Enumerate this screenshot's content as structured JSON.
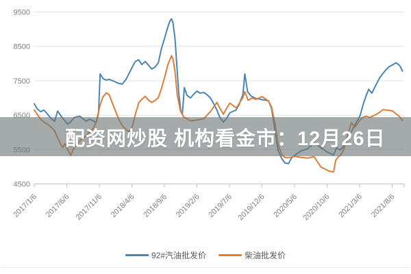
{
  "banner": {
    "text": "配资网炒股 机构看金市：12月26日"
  },
  "chart_data": {
    "type": "line",
    "title": "",
    "xlabel": "",
    "ylabel": "",
    "ylim": [
      4500,
      9500
    ],
    "grid": true,
    "legend_position": "bottom",
    "y_ticks": [
      9500,
      8500,
      7500,
      6500,
      5500,
      4500
    ],
    "x_tick_labels": [
      "2017/1/6",
      "2017/6/6",
      "2017/11/6",
      "2018/4/6",
      "2018/9/6",
      "2019/2/6",
      "2019/7/6",
      "2019/12/6",
      "2020/5/6",
      "2020/10/6",
      "2021/3/6",
      "2021/8/6"
    ],
    "axis_color": "#bfbfbf",
    "gridline_color": "#e2e2e2",
    "tick_label_color": "#7f7f7f",
    "series": [
      {
        "name": "92#汽油批发价",
        "color": "#4a84b4",
        "points": [
          [
            "2017/1/6",
            6830
          ],
          [
            "2017/1/20",
            6680
          ],
          [
            "2017/2/6",
            6600
          ],
          [
            "2017/2/20",
            6650
          ],
          [
            "2017/3/6",
            6540
          ],
          [
            "2017/3/24",
            6400
          ],
          [
            "2017/4/10",
            6320
          ],
          [
            "2017/4/24",
            6620
          ],
          [
            "2017/5/12",
            6450
          ],
          [
            "2017/5/26",
            6350
          ],
          [
            "2017/6/10",
            6240
          ],
          [
            "2017/6/24",
            6300
          ],
          [
            "2017/7/10",
            6430
          ],
          [
            "2017/8/6",
            6470
          ],
          [
            "2017/9/6",
            6320
          ],
          [
            "2017/9/20",
            6380
          ],
          [
            "2017/10/6",
            6340
          ],
          [
            "2017/10/22",
            6280
          ],
          [
            "2017/11/2",
            6550
          ],
          [
            "2017/11/10",
            7700
          ],
          [
            "2017/11/24",
            7560
          ],
          [
            "2017/12/8",
            7520
          ],
          [
            "2017/12/22",
            7540
          ],
          [
            "2018/1/8",
            7500
          ],
          [
            "2018/1/22",
            7460
          ],
          [
            "2018/2/8",
            7420
          ],
          [
            "2018/2/22",
            7400
          ],
          [
            "2018/3/10",
            7550
          ],
          [
            "2018/3/24",
            7720
          ],
          [
            "2018/4/8",
            7900
          ],
          [
            "2018/4/22",
            8060
          ],
          [
            "2018/5/8",
            8110
          ],
          [
            "2018/5/22",
            7970
          ],
          [
            "2018/6/8",
            8060
          ],
          [
            "2018/6/22",
            7960
          ],
          [
            "2018/7/8",
            7840
          ],
          [
            "2018/7/22",
            7890
          ],
          [
            "2018/8/8",
            8020
          ],
          [
            "2018/8/22",
            8420
          ],
          [
            "2018/9/8",
            8760
          ],
          [
            "2018/9/22",
            9060
          ],
          [
            "2018/10/2",
            9250
          ],
          [
            "2018/10/9",
            9300
          ],
          [
            "2018/10/16",
            9180
          ],
          [
            "2018/10/25",
            8750
          ],
          [
            "2018/11/2",
            8050
          ],
          [
            "2018/11/12",
            7150
          ],
          [
            "2018/11/22",
            6620
          ],
          [
            "2018/11/29",
            6520
          ],
          [
            "2018/12/8",
            7300
          ],
          [
            "2018/12/20",
            7080
          ],
          [
            "2019/1/6",
            7000
          ],
          [
            "2019/1/20",
            7100
          ],
          [
            "2019/2/6",
            7200
          ],
          [
            "2019/2/20",
            7140
          ],
          [
            "2019/3/8",
            7160
          ],
          [
            "2019/3/22",
            7100
          ],
          [
            "2019/4/8",
            7000
          ],
          [
            "2019/4/22",
            6850
          ],
          [
            "2019/5/8",
            6650
          ],
          [
            "2019/5/22",
            6430
          ],
          [
            "2019/6/8",
            6300
          ],
          [
            "2019/6/22",
            6400
          ],
          [
            "2019/7/8",
            6570
          ],
          [
            "2019/8/6",
            6650
          ],
          [
            "2019/8/20",
            6800
          ],
          [
            "2019/9/8",
            7100
          ],
          [
            "2019/9/17",
            7700
          ],
          [
            "2019/9/30",
            7180
          ],
          [
            "2019/10/15",
            7060
          ],
          [
            "2019/11/6",
            6990
          ],
          [
            "2019/12/6",
            6950
          ],
          [
            "2020/1/6",
            6920
          ],
          [
            "2020/1/20",
            6700
          ],
          [
            "2020/2/6",
            6050
          ],
          [
            "2020/2/20",
            5480
          ],
          [
            "2020/3/8",
            5230
          ],
          [
            "2020/3/22",
            5110
          ],
          [
            "2020/4/8",
            5090
          ],
          [
            "2020/4/22",
            5250
          ],
          [
            "2020/5/8",
            5340
          ],
          [
            "2020/6/6",
            5460
          ],
          [
            "2020/7/6",
            5520
          ],
          [
            "2020/8/6",
            5690
          ],
          [
            "2020/8/20",
            5640
          ],
          [
            "2020/9/6",
            5560
          ],
          [
            "2020/10/6",
            5430
          ],
          [
            "2020/11/6",
            5340
          ],
          [
            "2020/11/20",
            5550
          ],
          [
            "2020/12/6",
            5490
          ],
          [
            "2020/12/20",
            5570
          ],
          [
            "2021/1/8",
            5760
          ],
          [
            "2021/2/6",
            6120
          ],
          [
            "2021/3/8",
            6480
          ],
          [
            "2021/3/22",
            6800
          ],
          [
            "2021/4/8",
            7100
          ],
          [
            "2021/4/18",
            7250
          ],
          [
            "2021/5/2",
            7140
          ],
          [
            "2021/5/20",
            7360
          ],
          [
            "2021/6/8",
            7580
          ],
          [
            "2021/6/22",
            7700
          ],
          [
            "2021/7/8",
            7820
          ],
          [
            "2021/7/22",
            7910
          ],
          [
            "2021/8/8",
            7960
          ],
          [
            "2021/8/22",
            8020
          ],
          [
            "2021/9/2",
            7990
          ],
          [
            "2021/9/12",
            7930
          ],
          [
            "2021/9/24",
            7780
          ]
        ]
      },
      {
        "name": "柴油批发价",
        "color": "#e07c35",
        "points": [
          [
            "2017/1/6",
            6650
          ],
          [
            "2017/1/20",
            6520
          ],
          [
            "2017/2/6",
            6380
          ],
          [
            "2017/2/20",
            6300
          ],
          [
            "2017/3/10",
            6230
          ],
          [
            "2017/3/24",
            6150
          ],
          [
            "2017/4/8",
            6060
          ],
          [
            "2017/4/22",
            5870
          ],
          [
            "2017/5/8",
            5650
          ],
          [
            "2017/5/18",
            5560
          ],
          [
            "2017/5/28",
            5670
          ],
          [
            "2017/6/10",
            5500
          ],
          [
            "2017/6/24",
            5330
          ],
          [
            "2017/7/10",
            5560
          ],
          [
            "2017/8/6",
            5750
          ],
          [
            "2017/9/6",
            5910
          ],
          [
            "2017/10/6",
            6090
          ],
          [
            "2017/10/22",
            6300
          ],
          [
            "2017/11/8",
            6750
          ],
          [
            "2017/11/22",
            7020
          ],
          [
            "2017/12/8",
            7150
          ],
          [
            "2017/12/22",
            7090
          ],
          [
            "2018/1/8",
            6820
          ],
          [
            "2018/1/22",
            6600
          ],
          [
            "2018/2/8",
            6350
          ],
          [
            "2018/2/22",
            6200
          ],
          [
            "2018/3/10",
            6080
          ],
          [
            "2018/3/22",
            6010
          ],
          [
            "2018/4/8",
            6160
          ],
          [
            "2018/4/22",
            6520
          ],
          [
            "2018/5/8",
            6860
          ],
          [
            "2018/5/22",
            6960
          ],
          [
            "2018/6/8",
            7050
          ],
          [
            "2018/6/22",
            6940
          ],
          [
            "2018/7/8",
            6870
          ],
          [
            "2018/7/22",
            6920
          ],
          [
            "2018/8/8",
            7010
          ],
          [
            "2018/8/22",
            7260
          ],
          [
            "2018/9/8",
            7620
          ],
          [
            "2018/9/22",
            7960
          ],
          [
            "2018/10/9",
            8230
          ],
          [
            "2018/10/16",
            8130
          ],
          [
            "2018/10/25",
            7780
          ],
          [
            "2018/11/5",
            7100
          ],
          [
            "2018/11/20",
            6620
          ],
          [
            "2018/12/6",
            6440
          ],
          [
            "2018/12/20",
            6400
          ],
          [
            "2019/1/6",
            6330
          ],
          [
            "2019/2/6",
            6360
          ],
          [
            "2019/3/8",
            6400
          ],
          [
            "2019/4/8",
            6600
          ],
          [
            "2019/5/8",
            6870
          ],
          [
            "2019/5/22",
            6700
          ],
          [
            "2019/6/8",
            6530
          ],
          [
            "2019/6/22",
            6690
          ],
          [
            "2019/7/8",
            6850
          ],
          [
            "2019/7/22",
            6780
          ],
          [
            "2019/8/8",
            6710
          ],
          [
            "2019/8/22",
            6850
          ],
          [
            "2019/9/8",
            7010
          ],
          [
            "2019/9/17",
            7180
          ],
          [
            "2019/10/2",
            6930
          ],
          [
            "2019/10/20",
            7000
          ],
          [
            "2019/11/8",
            6960
          ],
          [
            "2019/12/6",
            7040
          ],
          [
            "2020/1/6",
            6910
          ],
          [
            "2020/1/20",
            6740
          ],
          [
            "2020/2/6",
            6250
          ],
          [
            "2020/2/20",
            5640
          ],
          [
            "2020/3/8",
            5340
          ],
          [
            "2020/3/22",
            5270
          ],
          [
            "2020/4/8",
            5260
          ],
          [
            "2020/5/6",
            5300
          ],
          [
            "2020/6/6",
            5270
          ],
          [
            "2020/7/6",
            5250
          ],
          [
            "2020/8/6",
            5290
          ],
          [
            "2020/8/22",
            5140
          ],
          [
            "2020/9/8",
            4990
          ],
          [
            "2020/10/6",
            4900
          ],
          [
            "2020/10/22",
            4860
          ],
          [
            "2020/11/6",
            4850
          ],
          [
            "2020/11/16",
            5190
          ],
          [
            "2020/11/28",
            5290
          ],
          [
            "2020/12/8",
            5330
          ],
          [
            "2020/12/22",
            5480
          ],
          [
            "2021/1/8",
            5850
          ],
          [
            "2021/1/28",
            6280
          ],
          [
            "2021/2/14",
            6150
          ],
          [
            "2021/3/8",
            6350
          ],
          [
            "2021/3/22",
            6440
          ],
          [
            "2021/4/8",
            6470
          ],
          [
            "2021/4/22",
            6430
          ],
          [
            "2021/5/8",
            6480
          ],
          [
            "2021/5/22",
            6520
          ],
          [
            "2021/6/8",
            6580
          ],
          [
            "2021/6/24",
            6660
          ],
          [
            "2021/7/8",
            6650
          ],
          [
            "2021/7/22",
            6640
          ],
          [
            "2021/8/8",
            6620
          ],
          [
            "2021/8/24",
            6540
          ],
          [
            "2021/9/8",
            6470
          ],
          [
            "2021/9/24",
            6340
          ]
        ]
      }
    ]
  }
}
